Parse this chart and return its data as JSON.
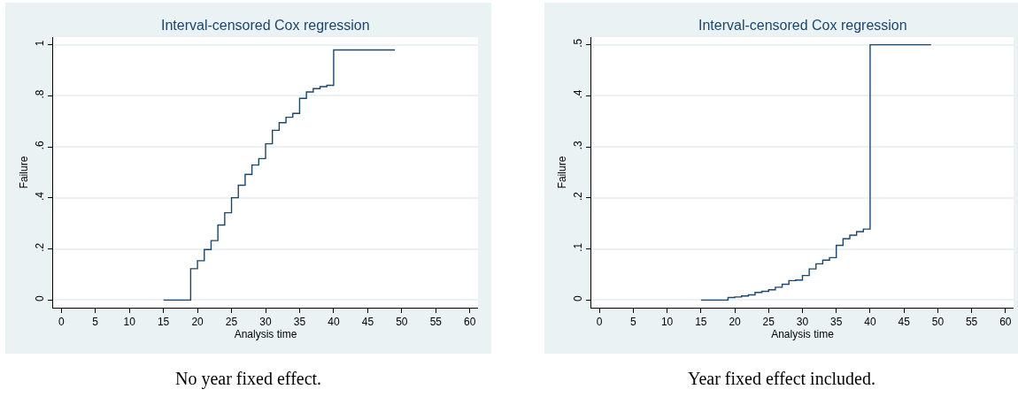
{
  "chart_data": [
    {
      "type": "step",
      "title": "Interval-censored Cox regression",
      "xlabel": "Analysis time",
      "ylabel": "Failure",
      "x": [
        15,
        19,
        20,
        21,
        22,
        23,
        24,
        25,
        26,
        27,
        28,
        29,
        30,
        31,
        32,
        33,
        34,
        35,
        36,
        37,
        38,
        39,
        40,
        49
      ],
      "series": [
        {
          "color": "#1a476f",
          "values": [
            0,
            0.123,
            0.154,
            0.198,
            0.233,
            0.294,
            0.342,
            0.401,
            0.45,
            0.492,
            0.529,
            0.554,
            0.612,
            0.665,
            0.695,
            0.716,
            0.731,
            0.79,
            0.815,
            0.828,
            0.836,
            0.841,
            0.98,
            0.98
          ]
        }
      ],
      "xlim": [
        -1.2,
        61.2
      ],
      "xticks": [
        0,
        5,
        10,
        15,
        20,
        25,
        30,
        35,
        40,
        45,
        50,
        55,
        60
      ],
      "ylim": [
        -0.03,
        1.03
      ],
      "yticks": [
        {
          "value": 0,
          "label": "0"
        },
        {
          "value": 0.2,
          "label": ".2"
        },
        {
          "value": 0.4,
          "label": ".4"
        },
        {
          "value": 0.6,
          "label": ".6"
        },
        {
          "value": 0.8,
          "label": ".8"
        },
        {
          "value": 1,
          "label": "1"
        }
      ],
      "grid": "y",
      "annotations": [
        "No year fixed effect."
      ]
    },
    {
      "type": "step",
      "title": "Interval-censored Cox regression",
      "xlabel": "Analysis time",
      "ylabel": "Failure",
      "x": [
        15,
        19,
        20,
        21,
        22,
        23,
        24,
        25,
        26,
        27,
        28,
        29,
        30,
        31,
        32,
        33,
        34,
        35,
        36,
        37,
        38,
        39,
        40,
        49
      ],
      "series": [
        {
          "color": "#1a476f",
          "values": [
            0,
            0.005,
            0.006,
            0.008,
            0.01,
            0.015,
            0.017,
            0.02,
            0.025,
            0.031,
            0.038,
            0.039,
            0.048,
            0.061,
            0.071,
            0.078,
            0.083,
            0.107,
            0.12,
            0.127,
            0.134,
            0.139,
            0.5,
            0.5
          ]
        }
      ],
      "xlim": [
        -1.2,
        61.2
      ],
      "xticks": [
        0,
        5,
        10,
        15,
        20,
        25,
        30,
        35,
        40,
        45,
        50,
        55,
        60
      ],
      "ylim": [
        -0.015,
        0.515
      ],
      "yticks": [
        {
          "value": 0,
          "label": "0"
        },
        {
          "value": 0.1,
          "label": ".1"
        },
        {
          "value": 0.2,
          "label": ".2"
        },
        {
          "value": 0.3,
          "label": ".3"
        },
        {
          "value": 0.4,
          "label": ".4"
        },
        {
          "value": 0.5,
          "label": ".5"
        }
      ],
      "grid": "y",
      "annotations": [
        "Year fixed effect included."
      ]
    }
  ]
}
